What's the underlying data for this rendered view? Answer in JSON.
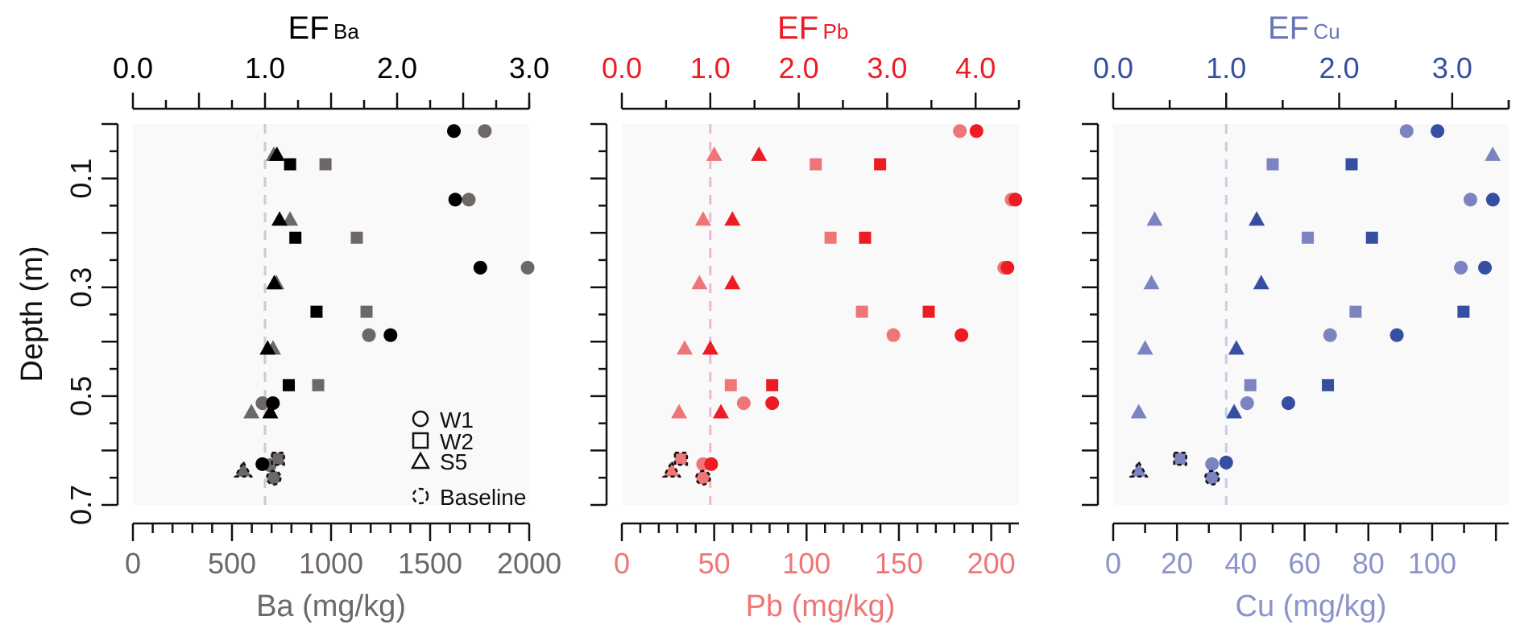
{
  "chart_data": {
    "type": "scatter",
    "y_axis": {
      "label": "Depth (m)",
      "range": [
        0,
        0.7
      ],
      "inverted": true,
      "tick_labels": [
        "0.1",
        "0.3",
        "0.5",
        "0.7"
      ],
      "tick_values": [
        0.1,
        0.3,
        0.5,
        0.7
      ],
      "major_step": 0.1,
      "minor_step": 0.05
    },
    "legend": {
      "position": "bottom-right of first panel",
      "entries": [
        {
          "label": "W1",
          "marker": "circle"
        },
        {
          "label": "W2",
          "marker": "square"
        },
        {
          "label": "S5",
          "marker": "triangle"
        },
        {
          "label": "Baseline",
          "marker": "dashed-circle"
        }
      ]
    },
    "panels": [
      {
        "element": "Ba",
        "top_title_main": "EF",
        "top_title_sub": "Ba",
        "top_axis": {
          "range": [
            0,
            3.0
          ],
          "tick_labels": [
            "0.0",
            "1.0",
            "2.0",
            "3.0"
          ],
          "tick_values": [
            0,
            1,
            2,
            3
          ],
          "major_step": 0.5,
          "minor_step": 0.25
        },
        "bottom_axis": {
          "label": "Ba (mg/kg)",
          "range": [
            0,
            2000
          ],
          "tick_labels": [
            "0",
            "500",
            "1000",
            "1500",
            "2000"
          ],
          "tick_values": [
            0,
            500,
            1000,
            1500,
            2000
          ],
          "major_step": 500,
          "minor_step": 100
        },
        "baseline_ef": 1.0,
        "colors": {
          "ef": "#000000",
          "conc": "#6d6865",
          "title": "#000000",
          "bottom": "#6d6865",
          "dash": "#cccccc"
        },
        "ef_series": [
          {
            "name": "W1",
            "marker": "circle",
            "points": [
              [
                2.43,
                0.013
              ],
              [
                2.44,
                0.139
              ],
              [
                2.63,
                0.264
              ],
              [
                1.95,
                0.388
              ],
              [
                1.06,
                0.513
              ],
              [
                0.98,
                0.625
              ]
            ]
          },
          {
            "name": "W2",
            "marker": "square",
            "points": [
              [
                1.19,
                0.074
              ],
              [
                1.23,
                0.209
              ],
              [
                1.39,
                0.345
              ],
              [
                1.18,
                0.48
              ]
            ]
          },
          {
            "name": "S5",
            "marker": "triangle",
            "points": [
              [
                1.09,
                0.056
              ],
              [
                1.11,
                0.175
              ],
              [
                1.07,
                0.292
              ],
              [
                1.02,
                0.412
              ],
              [
                1.04,
                0.529
              ]
            ]
          }
        ],
        "conc_series": [
          {
            "name": "W1",
            "marker": "circle",
            "points": [
              [
                1776,
                0.013
              ],
              [
                1695,
                0.139
              ],
              [
                1992,
                0.264
              ],
              [
                1191,
                0.388
              ],
              [
                654,
                0.513
              ],
              [
                691,
                0.627
              ]
            ]
          },
          {
            "name": "W2",
            "marker": "square",
            "points": [
              [
                972,
                0.074
              ],
              [
                1130,
                0.209
              ],
              [
                1179,
                0.345
              ],
              [
                935,
                0.48
              ]
            ]
          },
          {
            "name": "S5",
            "marker": "triangle",
            "points": [
              [
                711,
                0.056
              ],
              [
                793,
                0.175
              ],
              [
                724,
                0.292
              ],
              [
                707,
                0.412
              ],
              [
                598,
                0.529
              ]
            ]
          }
        ],
        "baseline_series": [
          {
            "name": "W2",
            "marker": "square",
            "points": [
              [
                732,
                0.615
              ]
            ]
          },
          {
            "name": "S5",
            "marker": "triangle",
            "points": [
              [
                557,
                0.636
              ]
            ]
          },
          {
            "name": "W1",
            "marker": "circle",
            "points": [
              [
                711,
                0.65
              ]
            ]
          }
        ]
      },
      {
        "element": "Pb",
        "top_title_main": "EF",
        "top_title_sub": "Pb",
        "top_axis": {
          "range": [
            0,
            4.49
          ],
          "tick_labels": [
            "0.0",
            "1.0",
            "2.0",
            "3.0",
            "4.0"
          ],
          "tick_values": [
            0,
            1,
            2,
            3,
            4
          ],
          "major_step": 1.0,
          "minor_step": 0.5
        },
        "bottom_axis": {
          "label": "Pb (mg/kg)",
          "range": [
            0,
            215
          ],
          "tick_labels": [
            "0",
            "50",
            "100",
            "150",
            "200"
          ],
          "tick_values": [
            0,
            50,
            100,
            150,
            200
          ],
          "major_step": 50,
          "minor_step": 10
        },
        "baseline_ef": 1.0,
        "colors": {
          "ef": "#ed1c24",
          "conc": "#ee7677",
          "title": "#ed1c24",
          "bottom": "#ee7677",
          "dash": "#f0b8cf"
        },
        "ef_series": [
          {
            "name": "W1",
            "marker": "circle",
            "points": [
              [
                4.01,
                0.013
              ],
              [
                4.45,
                0.139
              ],
              [
                4.36,
                0.264
              ],
              [
                3.84,
                0.388
              ],
              [
                1.7,
                0.513
              ],
              [
                1.01,
                0.625
              ]
            ]
          },
          {
            "name": "W2",
            "marker": "square",
            "points": [
              [
                2.92,
                0.074
              ],
              [
                2.75,
                0.209
              ],
              [
                3.47,
                0.345
              ],
              [
                1.7,
                0.48
              ]
            ]
          },
          {
            "name": "S5",
            "marker": "triangle",
            "points": [
              [
                1.55,
                0.056
              ],
              [
                1.25,
                0.175
              ],
              [
                1.25,
                0.292
              ],
              [
                1.0,
                0.412
              ],
              [
                1.12,
                0.529
              ]
            ]
          }
        ],
        "conc_series": [
          {
            "name": "W1",
            "marker": "circle",
            "points": [
              [
                183,
                0.013
              ],
              [
                211,
                0.139
              ],
              [
                207,
                0.264
              ],
              [
                147,
                0.388
              ],
              [
                66,
                0.513
              ],
              [
                44,
                0.625
              ]
            ]
          },
          {
            "name": "W2",
            "marker": "square",
            "points": [
              [
                105,
                0.074
              ],
              [
                113,
                0.209
              ],
              [
                130,
                0.345
              ],
              [
                59,
                0.48
              ]
            ]
          },
          {
            "name": "S5",
            "marker": "triangle",
            "points": [
              [
                50,
                0.056
              ],
              [
                44,
                0.175
              ],
              [
                42,
                0.292
              ],
              [
                34,
                0.412
              ],
              [
                31,
                0.529
              ]
            ]
          }
        ],
        "baseline_series": [
          {
            "name": "W2",
            "marker": "square",
            "points": [
              [
                32,
                0.615
              ]
            ]
          },
          {
            "name": "S5",
            "marker": "triangle",
            "points": [
              [
                27,
                0.636
              ]
            ]
          },
          {
            "name": "W1",
            "marker": "circle",
            "points": [
              [
                44,
                0.65
              ]
            ]
          }
        ]
      },
      {
        "element": "Cu",
        "top_title_main": "EF",
        "top_title_sub": "Cu",
        "top_axis": {
          "range": [
            0,
            3.5
          ],
          "tick_labels": [
            "0.0",
            "1.0",
            "2.0",
            "3.0"
          ],
          "tick_values": [
            0,
            1,
            2,
            3
          ],
          "major_step": 1.0,
          "minor_step": 0.5
        },
        "bottom_axis": {
          "label": "Cu (mg/kg)",
          "range": [
            0,
            124
          ],
          "tick_labels": [
            "0",
            "20",
            "40",
            "60",
            "80",
            "100"
          ],
          "tick_values": [
            0,
            20,
            40,
            60,
            80,
            100
          ],
          "major_step": 20,
          "minor_step": 10
        },
        "baseline_ef": 1.0,
        "colors": {
          "ef": "#364ea1",
          "conc": "#7b84c1",
          "title": "#6a74b9",
          "top_ticks": "#364ea1",
          "bottom": "#8b93cb",
          "dash": "#c9cbe6"
        },
        "ef_series": [
          {
            "name": "W1",
            "marker": "circle",
            "points": [
              [
                2.87,
                0.013
              ],
              [
                3.36,
                0.139
              ],
              [
                3.29,
                0.264
              ],
              [
                2.51,
                0.388
              ],
              [
                1.55,
                0.513
              ],
              [
                1.0,
                0.622
              ]
            ]
          },
          {
            "name": "W2",
            "marker": "square",
            "points": [
              [
                2.11,
                0.074
              ],
              [
                2.29,
                0.209
              ],
              [
                3.1,
                0.345
              ],
              [
                1.9,
                0.48
              ]
            ]
          },
          {
            "name": "S5",
            "marker": "triangle",
            "points": [
              [
                1.27,
                0.175
              ],
              [
                1.31,
                0.292
              ],
              [
                1.09,
                0.412
              ],
              [
                1.07,
                0.529
              ]
            ]
          }
        ],
        "conc_series": [
          {
            "name": "W1",
            "marker": "circle",
            "points": [
              [
                92,
                0.013
              ],
              [
                112,
                0.139
              ],
              [
                109,
                0.264
              ],
              [
                68,
                0.388
              ],
              [
                42,
                0.513
              ],
              [
                31,
                0.625
              ]
            ]
          },
          {
            "name": "W2",
            "marker": "square",
            "points": [
              [
                50,
                0.074
              ],
              [
                61,
                0.209
              ],
              [
                76,
                0.345
              ],
              [
                43,
                0.48
              ]
            ]
          },
          {
            "name": "S5",
            "marker": "triangle",
            "points": [
              [
                119,
                0.056
              ],
              [
                13,
                0.175
              ],
              [
                12,
                0.292
              ],
              [
                10,
                0.412
              ],
              [
                8,
                0.529
              ]
            ]
          }
        ],
        "baseline_series": [
          {
            "name": "W2",
            "marker": "square",
            "points": [
              [
                21,
                0.615
              ]
            ]
          },
          {
            "name": "S5",
            "marker": "triangle",
            "points": [
              [
                8,
                0.636
              ]
            ]
          },
          {
            "name": "W1",
            "marker": "circle",
            "points": [
              [
                31,
                0.65
              ]
            ]
          }
        ]
      }
    ]
  }
}
